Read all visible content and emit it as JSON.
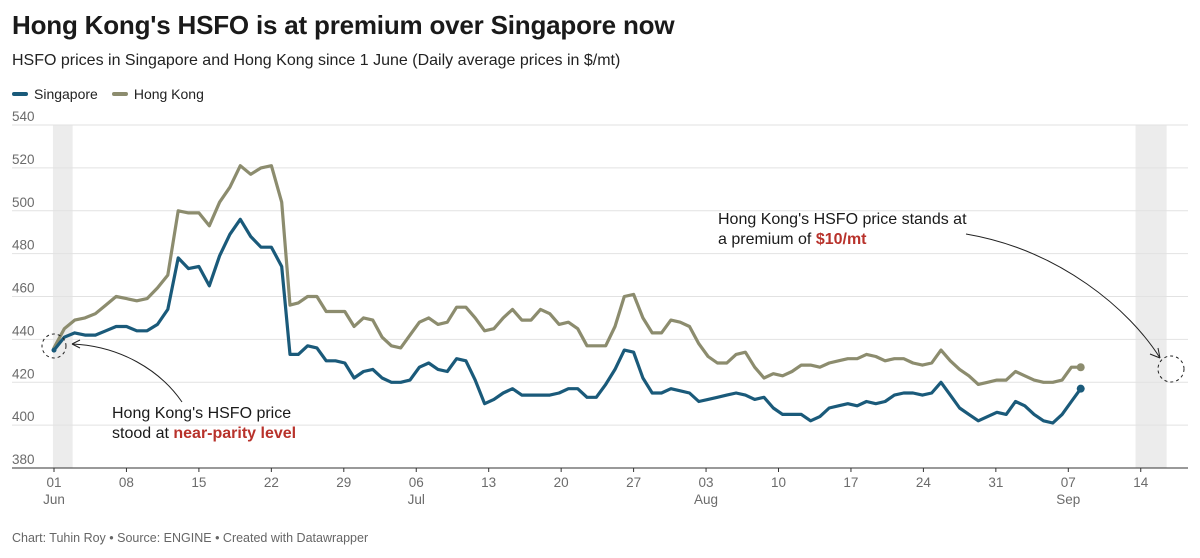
{
  "title": "Hong Kong's HSFO is at premium over Singapore now",
  "subtitle": "HSFO prices in Singapore and Hong Kong since 1 June (Daily average prices in $/mt)",
  "footer": "Chart: Tuhin Roy • Source: ENGINE • Created with Datawrapper",
  "colors": {
    "singapore": "#1a5a7a",
    "hong_kong": "#8c8c6e",
    "highlight": "#b8322b",
    "band": "#ececec",
    "grid": "#e2e2e2"
  },
  "chart_data": {
    "type": "line",
    "ylim": [
      380,
      540
    ],
    "yticks": [
      380,
      400,
      420,
      440,
      460,
      480,
      500,
      520,
      540
    ],
    "x_day_range": [
      0,
      108
    ],
    "xticks": [
      {
        "day": 0,
        "label": "01",
        "sub": "Jun"
      },
      {
        "day": 7,
        "label": "08",
        "sub": ""
      },
      {
        "day": 14,
        "label": "15",
        "sub": ""
      },
      {
        "day": 21,
        "label": "22",
        "sub": ""
      },
      {
        "day": 28,
        "label": "29",
        "sub": ""
      },
      {
        "day": 35,
        "label": "06",
        "sub": "Jul"
      },
      {
        "day": 42,
        "label": "13",
        "sub": ""
      },
      {
        "day": 49,
        "label": "20",
        "sub": ""
      },
      {
        "day": 56,
        "label": "27",
        "sub": ""
      },
      {
        "day": 63,
        "label": "03",
        "sub": "Aug"
      },
      {
        "day": 70,
        "label": "10",
        "sub": ""
      },
      {
        "day": 77,
        "label": "17",
        "sub": ""
      },
      {
        "day": 84,
        "label": "24",
        "sub": ""
      },
      {
        "day": 91,
        "label": "31",
        "sub": ""
      },
      {
        "day": 98,
        "label": "07",
        "sub": "Sep"
      },
      {
        "day": 105,
        "label": "14",
        "sub": ""
      }
    ],
    "highlight_bands": [
      [
        -0.1,
        1.8
      ],
      [
        104.5,
        107.5
      ]
    ],
    "series": [
      {
        "name": "Singapore",
        "color": "#1a5a7a",
        "points": [
          [
            0,
            435
          ],
          [
            1,
            441
          ],
          [
            2,
            443
          ],
          [
            3,
            442
          ],
          [
            4,
            442
          ],
          [
            5,
            444
          ],
          [
            6,
            446
          ],
          [
            7,
            446
          ],
          [
            8,
            444
          ],
          [
            9,
            444
          ],
          [
            10,
            447
          ],
          [
            11,
            454
          ],
          [
            12,
            478
          ],
          [
            13,
            473
          ],
          [
            14,
            474
          ],
          [
            15,
            465
          ],
          [
            16,
            479
          ],
          [
            17,
            489
          ],
          [
            18,
            496
          ],
          [
            19,
            488
          ],
          [
            20,
            483
          ],
          [
            21,
            483
          ],
          [
            22,
            474
          ],
          [
            22.8,
            433
          ],
          [
            23.6,
            433
          ],
          [
            24.5,
            437
          ],
          [
            25.4,
            436
          ],
          [
            26.3,
            430
          ],
          [
            27.2,
            430
          ],
          [
            28.1,
            429
          ],
          [
            29,
            422
          ],
          [
            29.9,
            425
          ],
          [
            30.8,
            426
          ],
          [
            31.7,
            422
          ],
          [
            32.6,
            420
          ],
          [
            33.5,
            420
          ],
          [
            34.4,
            421
          ],
          [
            35.3,
            427
          ],
          [
            36.2,
            429
          ],
          [
            37.1,
            426
          ],
          [
            38,
            425
          ],
          [
            38.9,
            431
          ],
          [
            39.8,
            430
          ],
          [
            40.7,
            421
          ],
          [
            41.6,
            410
          ],
          [
            42.5,
            412
          ],
          [
            43.4,
            415
          ],
          [
            44.3,
            417
          ],
          [
            45.2,
            414
          ],
          [
            46.1,
            414
          ],
          [
            47,
            414
          ],
          [
            47.9,
            414
          ],
          [
            48.8,
            415
          ],
          [
            49.7,
            417
          ],
          [
            50.6,
            417
          ],
          [
            51.5,
            413
          ],
          [
            52.4,
            413
          ],
          [
            53.3,
            419
          ],
          [
            54.2,
            426
          ],
          [
            55.1,
            435
          ],
          [
            56,
            434
          ],
          [
            56.9,
            422
          ],
          [
            57.8,
            415
          ],
          [
            58.7,
            415
          ],
          [
            59.6,
            417
          ],
          [
            60.5,
            416
          ],
          [
            61.4,
            415
          ],
          [
            62.3,
            411
          ],
          [
            63.2,
            412
          ],
          [
            64.1,
            413
          ],
          [
            65,
            414
          ],
          [
            65.9,
            415
          ],
          [
            66.8,
            414
          ],
          [
            67.7,
            412
          ],
          [
            68.6,
            413
          ],
          [
            69.5,
            408
          ],
          [
            70.4,
            405
          ],
          [
            71.3,
            405
          ],
          [
            72.2,
            405
          ],
          [
            73.1,
            402
          ],
          [
            74,
            404
          ],
          [
            74.9,
            408
          ],
          [
            75.8,
            409
          ],
          [
            76.7,
            410
          ],
          [
            77.6,
            409
          ],
          [
            78.5,
            411
          ],
          [
            79.4,
            410
          ],
          [
            80.3,
            411
          ],
          [
            81.2,
            414
          ],
          [
            82.1,
            415
          ],
          [
            83,
            415
          ],
          [
            83.9,
            414
          ],
          [
            84.8,
            415
          ],
          [
            85.7,
            420
          ],
          [
            86.6,
            414
          ],
          [
            87.5,
            408
          ],
          [
            88.4,
            405
          ],
          [
            89.3,
            402
          ],
          [
            90.2,
            404
          ],
          [
            91.1,
            406
          ],
          [
            92,
            405
          ],
          [
            92.9,
            411
          ],
          [
            93.8,
            409
          ],
          [
            94.7,
            405
          ],
          [
            95.6,
            402
          ],
          [
            96.5,
            401
          ],
          [
            97.4,
            405
          ],
          [
            98.3,
            411
          ],
          [
            99.2,
            417
          ]
        ]
      },
      {
        "name": "Hong Kong",
        "color": "#8c8c6e",
        "points": [
          [
            0,
            436
          ],
          [
            1,
            445
          ],
          [
            2,
            449
          ],
          [
            3,
            450
          ],
          [
            4,
            452
          ],
          [
            5,
            456
          ],
          [
            6,
            460
          ],
          [
            7,
            459
          ],
          [
            8,
            458
          ],
          [
            9,
            459
          ],
          [
            10,
            464
          ],
          [
            11,
            470
          ],
          [
            12,
            500
          ],
          [
            13,
            499
          ],
          [
            14,
            499
          ],
          [
            15,
            493
          ],
          [
            16,
            504
          ],
          [
            17,
            511
          ],
          [
            18,
            521
          ],
          [
            19,
            517
          ],
          [
            20,
            520
          ],
          [
            21,
            521
          ],
          [
            22,
            504
          ],
          [
            22.8,
            456
          ],
          [
            23.6,
            457
          ],
          [
            24.5,
            460
          ],
          [
            25.4,
            460
          ],
          [
            26.3,
            453
          ],
          [
            27.2,
            453
          ],
          [
            28.1,
            453
          ],
          [
            29,
            446
          ],
          [
            29.9,
            450
          ],
          [
            30.8,
            449
          ],
          [
            31.7,
            441
          ],
          [
            32.6,
            437
          ],
          [
            33.5,
            436
          ],
          [
            34.4,
            442
          ],
          [
            35.3,
            448
          ],
          [
            36.2,
            450
          ],
          [
            37.1,
            447
          ],
          [
            38,
            448
          ],
          [
            38.9,
            455
          ],
          [
            39.8,
            455
          ],
          [
            40.7,
            450
          ],
          [
            41.6,
            444
          ],
          [
            42.5,
            445
          ],
          [
            43.4,
            450
          ],
          [
            44.3,
            454
          ],
          [
            45.2,
            449
          ],
          [
            46.1,
            449
          ],
          [
            47,
            454
          ],
          [
            47.9,
            452
          ],
          [
            48.8,
            447
          ],
          [
            49.7,
            448
          ],
          [
            50.6,
            445
          ],
          [
            51.5,
            437
          ],
          [
            52.4,
            437
          ],
          [
            53.3,
            437
          ],
          [
            54.2,
            446
          ],
          [
            55.1,
            460
          ],
          [
            56,
            461
          ],
          [
            56.9,
            450
          ],
          [
            57.8,
            443
          ],
          [
            58.7,
            443
          ],
          [
            59.6,
            449
          ],
          [
            60.5,
            448
          ],
          [
            61.4,
            446
          ],
          [
            62.3,
            438
          ],
          [
            63.2,
            432
          ],
          [
            64.1,
            429
          ],
          [
            65,
            429
          ],
          [
            65.9,
            433
          ],
          [
            66.8,
            434
          ],
          [
            67.7,
            427
          ],
          [
            68.6,
            422
          ],
          [
            69.5,
            424
          ],
          [
            70.4,
            423
          ],
          [
            71.3,
            425
          ],
          [
            72.2,
            428
          ],
          [
            73.1,
            428
          ],
          [
            74,
            427
          ],
          [
            74.9,
            429
          ],
          [
            75.8,
            430
          ],
          [
            76.7,
            431
          ],
          [
            77.6,
            431
          ],
          [
            78.5,
            433
          ],
          [
            79.4,
            432
          ],
          [
            80.3,
            430
          ],
          [
            81.2,
            431
          ],
          [
            82.1,
            431
          ],
          [
            83,
            429
          ],
          [
            83.9,
            428
          ],
          [
            84.8,
            429
          ],
          [
            85.7,
            435
          ],
          [
            86.6,
            430
          ],
          [
            87.5,
            426
          ],
          [
            88.4,
            423
          ],
          [
            89.3,
            419
          ],
          [
            90.2,
            420
          ],
          [
            91.1,
            421
          ],
          [
            92,
            421
          ],
          [
            92.9,
            425
          ],
          [
            93.8,
            423
          ],
          [
            94.7,
            421
          ],
          [
            95.6,
            420
          ],
          [
            96.5,
            420
          ],
          [
            97.4,
            421
          ],
          [
            98.3,
            427
          ],
          [
            99.2,
            427
          ]
        ]
      }
    ],
    "annotations": [
      {
        "line1": "Hong Kong's HSFO price stands at",
        "line2_prefix": "a premium of ",
        "line2_highlight": "$10/mt"
      },
      {
        "line1": "Hong Kong's HSFO price",
        "line2_prefix": "stood at ",
        "line2_highlight": "near-parity level"
      }
    ]
  }
}
